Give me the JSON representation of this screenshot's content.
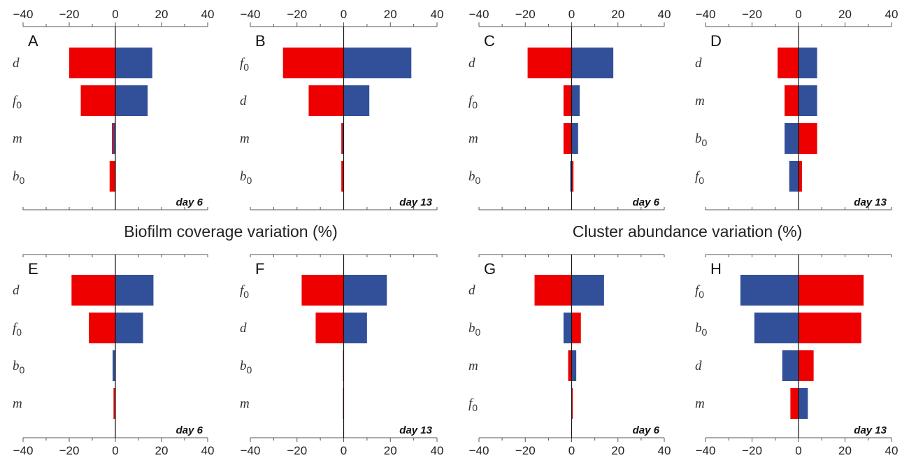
{
  "colors": {
    "red": "#ee0000",
    "blue": "#32509a"
  },
  "axis_titles": {
    "left": "Biofilm coverage variation (%)",
    "right": "Cluster abundance variation (%)"
  },
  "chart_data": [
    {
      "type": "bar",
      "panel": "A",
      "label": "day 6",
      "xlim": [
        -40,
        40
      ],
      "ticks": [
        "−40",
        "−20",
        "0",
        "20",
        "40"
      ],
      "params": [
        {
          "name": "d",
          "sub": "",
          "red": -20,
          "blue": 16
        },
        {
          "name": "f",
          "sub": "0",
          "red": -15,
          "blue": 14
        },
        {
          "name": "m",
          "sub": "",
          "red": -1.5,
          "blue": -1
        },
        {
          "name": "b",
          "sub": "0",
          "red": -2.5,
          "blue": 0
        }
      ]
    },
    {
      "type": "bar",
      "panel": "B",
      "label": "day 13",
      "xlim": [
        -40,
        40
      ],
      "ticks": [
        "−40",
        "−20",
        "0",
        "20",
        "40"
      ],
      "params": [
        {
          "name": "f",
          "sub": "0",
          "red": -26,
          "blue": 29
        },
        {
          "name": "d",
          "sub": "",
          "red": -15,
          "blue": 11
        },
        {
          "name": "m",
          "sub": "",
          "red": -1,
          "blue": -0.5
        },
        {
          "name": "b",
          "sub": "0",
          "red": -1,
          "blue": 0
        }
      ]
    },
    {
      "type": "bar",
      "panel": "C",
      "label": "day 6",
      "xlim": [
        -40,
        40
      ],
      "ticks": [
        "−40",
        "−20",
        "0",
        "20",
        "40"
      ],
      "params": [
        {
          "name": "d",
          "sub": "",
          "red": -19,
          "blue": 18
        },
        {
          "name": "f",
          "sub": "0",
          "red": -3.5,
          "blue": 3.5
        },
        {
          "name": "m",
          "sub": "",
          "red": -3.5,
          "blue": 2.8
        },
        {
          "name": "b",
          "sub": "0",
          "red": 0.8,
          "blue": -0.6
        }
      ]
    },
    {
      "type": "bar",
      "panel": "D",
      "label": "day 13",
      "xlim": [
        -40,
        40
      ],
      "ticks": [
        "−40",
        "−20",
        "0",
        "20",
        "40"
      ],
      "params": [
        {
          "name": "d",
          "sub": "",
          "red": -9,
          "blue": 8
        },
        {
          "name": "m",
          "sub": "",
          "red": -6,
          "blue": 8
        },
        {
          "name": "b",
          "sub": "0",
          "red": 8,
          "blue": -6
        },
        {
          "name": "f",
          "sub": "0",
          "red": 1.5,
          "blue": -4
        }
      ]
    },
    {
      "type": "bar",
      "panel": "E",
      "label": "day 6",
      "xlim": [
        -40,
        40
      ],
      "ticks": [
        "−40",
        "−20",
        "0",
        "20",
        "40"
      ],
      "params": [
        {
          "name": "d",
          "sub": "",
          "red": -19,
          "blue": 16.5
        },
        {
          "name": "f",
          "sub": "0",
          "red": -11.5,
          "blue": 12
        },
        {
          "name": "b",
          "sub": "0",
          "red": -0.6,
          "blue": -1.2
        },
        {
          "name": "m",
          "sub": "",
          "red": -0.8,
          "blue": 0
        }
      ]
    },
    {
      "type": "bar",
      "panel": "F",
      "label": "day 13",
      "xlim": [
        -40,
        40
      ],
      "ticks": [
        "−40",
        "−20",
        "0",
        "20",
        "40"
      ],
      "params": [
        {
          "name": "f",
          "sub": "0",
          "red": -18,
          "blue": 18.5
        },
        {
          "name": "d",
          "sub": "",
          "red": -12,
          "blue": 10
        },
        {
          "name": "b",
          "sub": "0",
          "red": -0.3,
          "blue": 0
        },
        {
          "name": "m",
          "sub": "",
          "red": -0.3,
          "blue": 0
        }
      ]
    },
    {
      "type": "bar",
      "panel": "G",
      "label": "day 6",
      "xlim": [
        -40,
        40
      ],
      "ticks": [
        "−40",
        "−20",
        "0",
        "20",
        "40"
      ],
      "params": [
        {
          "name": "d",
          "sub": "",
          "red": -16,
          "blue": 14
        },
        {
          "name": "b",
          "sub": "0",
          "red": 4,
          "blue": -3.5
        },
        {
          "name": "m",
          "sub": "",
          "red": -1.5,
          "blue": 2
        },
        {
          "name": "f",
          "sub": "0",
          "red": 0.5,
          "blue": 0
        }
      ]
    },
    {
      "type": "bar",
      "panel": "H",
      "label": "day 13",
      "xlim": [
        -40,
        40
      ],
      "ticks": [
        "−40",
        "−20",
        "0",
        "20",
        "40"
      ],
      "params": [
        {
          "name": "f",
          "sub": "0",
          "red": 28,
          "blue": -25
        },
        {
          "name": "b",
          "sub": "0",
          "red": 27,
          "blue": -19
        },
        {
          "name": "d",
          "sub": "",
          "red": 6.5,
          "blue": -7
        },
        {
          "name": "m",
          "sub": "",
          "red": -3.5,
          "blue": 4
        }
      ]
    }
  ]
}
